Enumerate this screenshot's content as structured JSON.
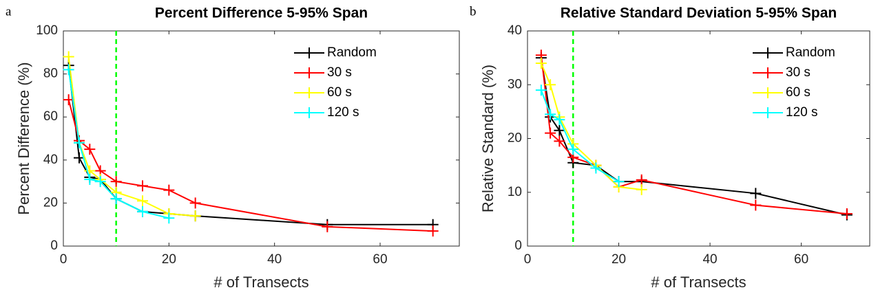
{
  "chart_data": [
    {
      "type": "line",
      "label": "a",
      "title": "Percent Difference 5-95% Span",
      "xlabel": "# of Transects",
      "ylabel": "Percent Difference (%)",
      "xlim": [
        0,
        75
      ],
      "xticks": [
        0,
        20,
        40,
        60
      ],
      "ylim": [
        0,
        100
      ],
      "yticks": [
        0,
        20,
        40,
        60,
        80,
        100
      ],
      "reference_line": {
        "x": 10,
        "color": "#00ff00"
      },
      "legend": "upper right",
      "series": [
        {
          "name": "Random",
          "color": "#000000",
          "x": [
            1,
            3,
            5,
            7,
            10,
            15,
            20,
            25,
            50,
            70
          ],
          "values": [
            84,
            41,
            32,
            31,
            22,
            16,
            15,
            14,
            10,
            10
          ]
        },
        {
          "name": "30 s",
          "color": "#ff0000",
          "x": [
            1,
            3,
            5,
            7,
            10,
            15,
            20,
            25,
            50,
            70
          ],
          "values": [
            68,
            49,
            45,
            35,
            30,
            28,
            26,
            20,
            9,
            7
          ]
        },
        {
          "name": "60 s",
          "color": "#ffff00",
          "x": [
            1,
            3,
            5,
            7,
            10,
            15,
            20,
            25
          ],
          "values": [
            88,
            48,
            35,
            31,
            25,
            21,
            15,
            14
          ]
        },
        {
          "name": "120 s",
          "color": "#00ffff",
          "x": [
            1,
            3,
            5,
            7,
            10,
            15,
            20
          ],
          "values": [
            82,
            48,
            31,
            30,
            22,
            16,
            13
          ]
        }
      ]
    },
    {
      "type": "line",
      "label": "b",
      "title": "Relative Standard Deviation 5-95% Span",
      "xlabel": "# of Transects",
      "ylabel": "Relative Standard (%)",
      "xlim": [
        0,
        75
      ],
      "xticks": [
        0,
        20,
        40,
        60
      ],
      "ylim": [
        0,
        40
      ],
      "yticks": [
        0,
        10,
        20,
        30,
        40
      ],
      "reference_line": {
        "x": 10,
        "color": "#00ff00"
      },
      "legend": "upper right",
      "series": [
        {
          "name": "Random",
          "color": "#000000",
          "x": [
            3,
            5,
            7,
            10,
            15,
            20,
            25,
            50,
            70
          ],
          "values": [
            35,
            24,
            21.5,
            15.5,
            15,
            12,
            12,
            9.8,
            5.8
          ]
        },
        {
          "name": "30 s",
          "color": "#ff0000",
          "x": [
            3,
            5,
            7,
            10,
            15,
            20,
            25,
            50,
            70
          ],
          "values": [
            35.5,
            21,
            19.5,
            16.5,
            15,
            11,
            12.3,
            7.6,
            6
          ]
        },
        {
          "name": "60 s",
          "color": "#ffff00",
          "x": [
            3,
            5,
            7,
            10,
            15,
            20,
            25
          ],
          "values": [
            34,
            30,
            24,
            19,
            15,
            11,
            10.5
          ]
        },
        {
          "name": "120 s",
          "color": "#00ffff",
          "x": [
            3,
            5,
            7,
            10,
            15,
            20
          ],
          "values": [
            29,
            24.5,
            23.5,
            18,
            14.5,
            12
          ]
        }
      ]
    }
  ]
}
